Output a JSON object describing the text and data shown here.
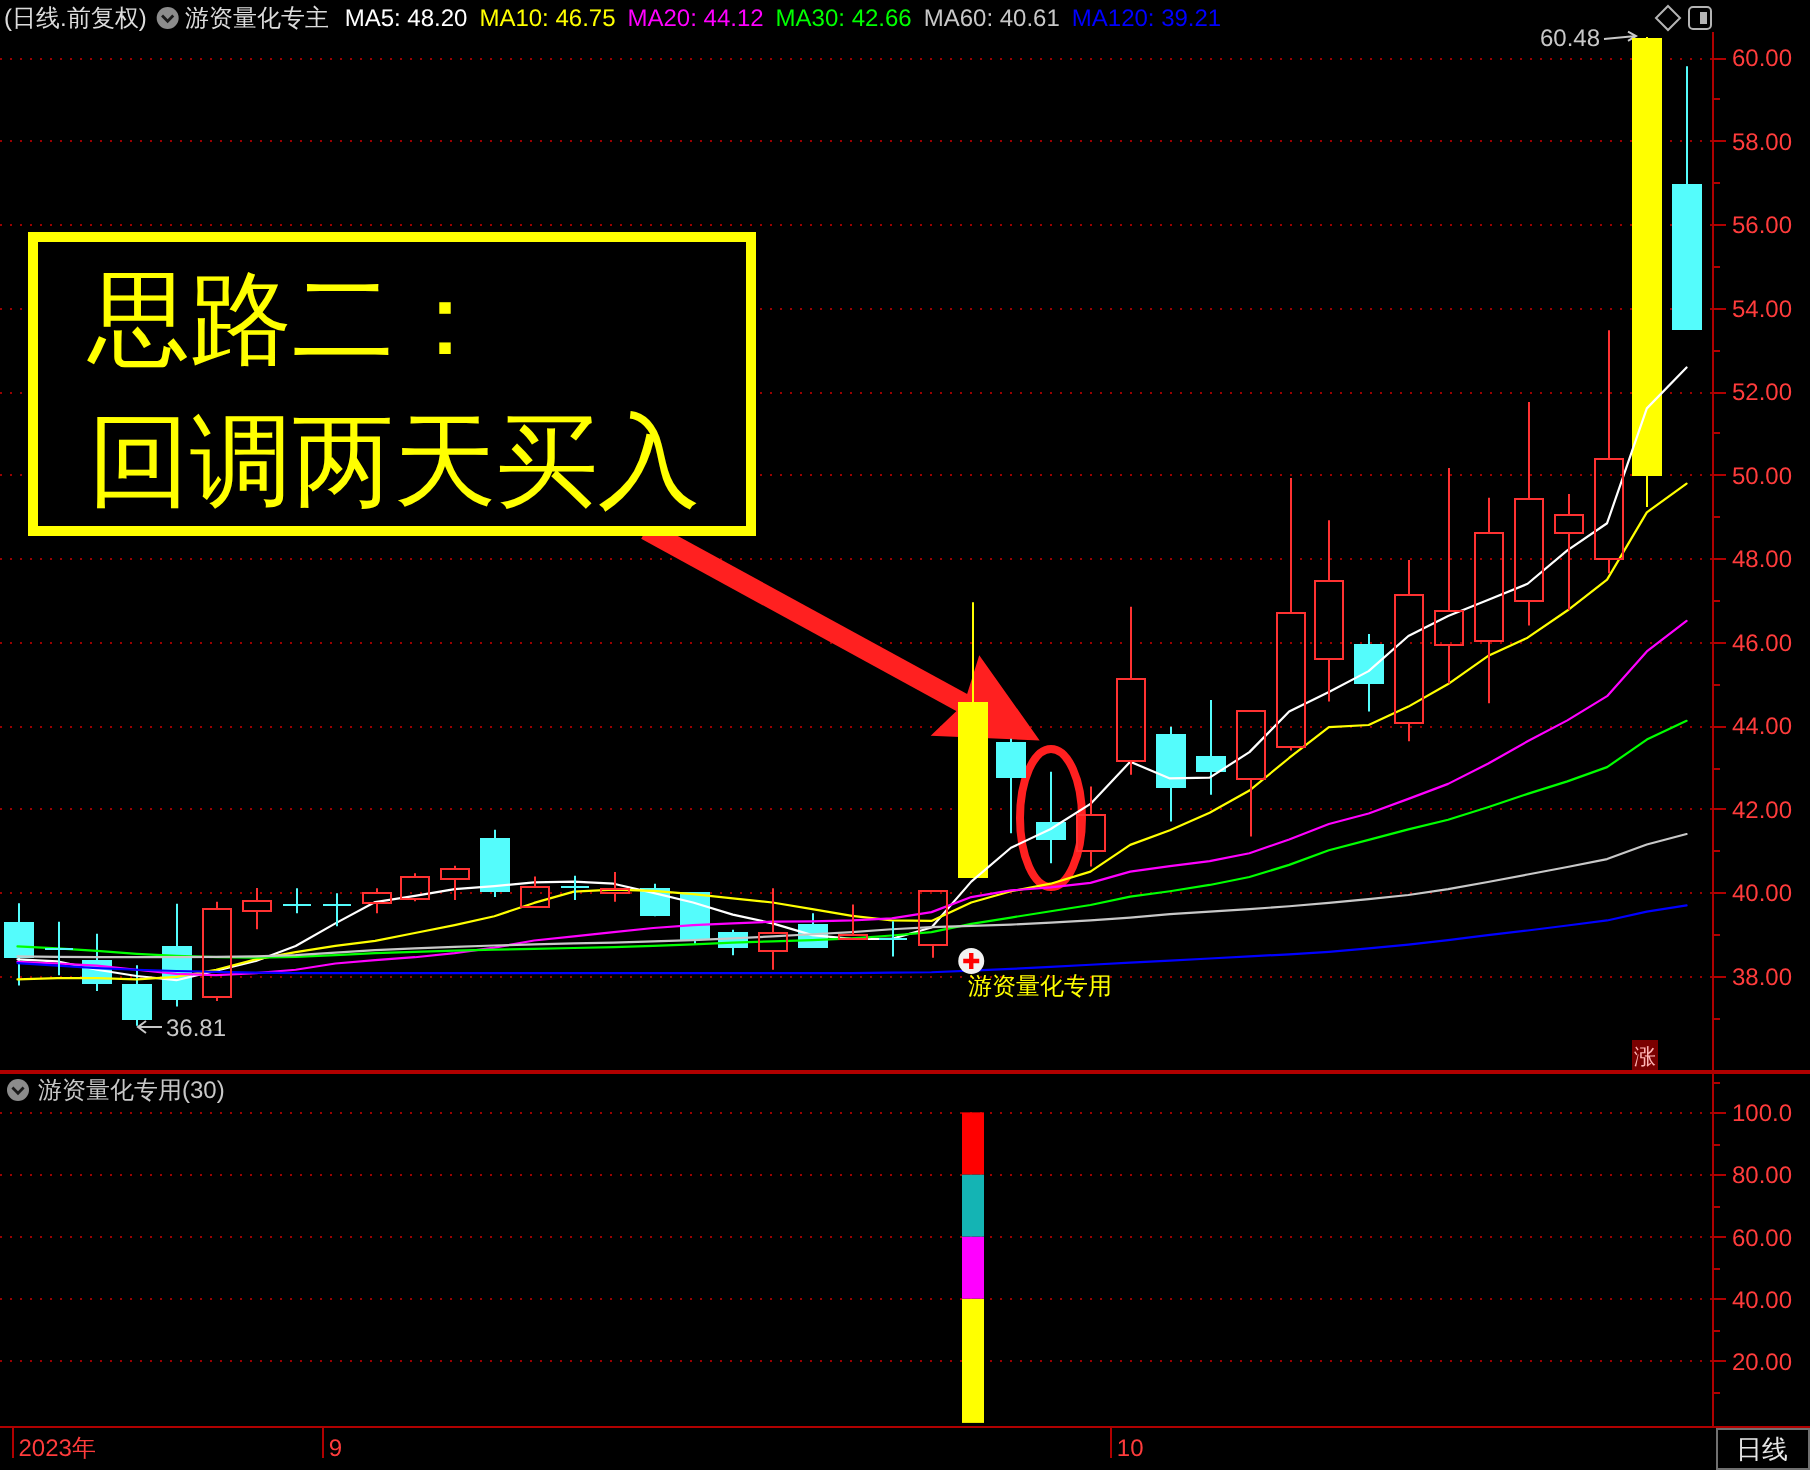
{
  "chart_data": [
    {
      "type": "candlestick",
      "title": "(日线.前复权)",
      "subtitle": "游资量化专主",
      "categories": [
        null,
        null,
        null,
        null,
        null,
        null,
        null,
        null,
        null,
        null,
        null,
        null,
        null,
        null,
        null,
        null,
        null,
        null,
        null,
        null,
        null,
        null,
        null,
        null,
        null,
        null,
        null,
        null,
        null,
        null,
        null,
        null,
        null,
        null,
        null,
        null,
        null,
        null,
        null,
        null,
        null,
        null,
        null
      ],
      "ohlc": [
        [
          39.3,
          39.74,
          37.77,
          38.5
        ],
        [
          38.67,
          39.3,
          38.02,
          38.67
        ],
        [
          38.39,
          39.01,
          37.64,
          37.88
        ],
        [
          37.81,
          38.26,
          36.81,
          37.01
        ],
        [
          38.72,
          39.73,
          37.27,
          37.45
        ],
        [
          37.54,
          39.78,
          37.4,
          39.63
        ],
        [
          39.57,
          40.11,
          39.12,
          39.81
        ],
        [
          39.71,
          40.1,
          39.5,
          39.71
        ],
        [
          39.71,
          39.98,
          39.19,
          39.71
        ],
        [
          39.79,
          40.1,
          39.5,
          40.0
        ],
        [
          39.89,
          40.46,
          39.79,
          40.38
        ],
        [
          40.36,
          40.64,
          39.82,
          40.59
        ],
        [
          41.31,
          41.5,
          39.89,
          40.05
        ],
        [
          39.69,
          40.38,
          39.69,
          40.16
        ],
        [
          40.14,
          40.4,
          39.82,
          40.14
        ],
        [
          40.0,
          40.49,
          39.78,
          40.12
        ],
        [
          40.12,
          40.21,
          39.43,
          39.5
        ],
        [
          40.01,
          40.01,
          38.74,
          38.9
        ],
        [
          39.04,
          39.11,
          38.5,
          38.71
        ],
        [
          38.64,
          40.1,
          38.15,
          39.07
        ],
        [
          39.25,
          39.5,
          38.67,
          38.74
        ],
        [
          38.93,
          39.71,
          38.9,
          39.02
        ],
        [
          38.9,
          39.31,
          38.47,
          38.9
        ],
        [
          38.78,
          40.05,
          38.44,
          40.05
        ],
        [
          40.38,
          46.95,
          40.38,
          44.57
        ],
        [
          43.6,
          43.68,
          41.42,
          42.8
        ],
        [
          41.69,
          42.89,
          40.7,
          41.29
        ],
        [
          41.01,
          42.54,
          40.62,
          41.88
        ],
        [
          43.17,
          46.84,
          42.82,
          45.12
        ],
        [
          43.78,
          43.97,
          41.7,
          42.54
        ],
        [
          43.27,
          44.61,
          42.34,
          42.92
        ],
        [
          42.73,
          44.35,
          41.34,
          44.35
        ],
        [
          43.49,
          49.92,
          43.4,
          46.71
        ],
        [
          45.6,
          48.91,
          44.57,
          47.46
        ],
        [
          45.95,
          46.19,
          44.33,
          45.05
        ],
        [
          44.07,
          47.96,
          43.62,
          47.13
        ],
        [
          45.93,
          50.16,
          45.0,
          46.75
        ],
        [
          46.03,
          49.45,
          44.53,
          48.61
        ],
        [
          46.99,
          51.74,
          46.39,
          49.43
        ],
        [
          48.61,
          49.54,
          46.76,
          49.04
        ],
        [
          48.0,
          53.46,
          47.64,
          50.38
        ],
        [
          50.0,
          60.48,
          49.23,
          60.48
        ],
        [
          56.95,
          59.78,
          53.47,
          53.52
        ]
      ],
      "colors": [
        "#54fcfc",
        "#54fcfc",
        "#54fcfc",
        "#54fcfc",
        "#54fcfc",
        "#ff3232",
        "#ff3232",
        "#54fcfc",
        "#54fcfc",
        "#ff3232",
        "#ff3232",
        "#ff3232",
        "#54fcfc",
        "#ff3232",
        "#54fcfc",
        "#ff3232",
        "#54fcfc",
        "#54fcfc",
        "#54fcfc",
        "#ff3232",
        "#54fcfc",
        "#ff3232",
        "#54fcfc",
        "#ff3232",
        "#ffff00",
        "#54fcfc",
        "#54fcfc",
        "#ff3232",
        "#ff3232",
        "#54fcfc",
        "#54fcfc",
        "#ff3232",
        "#ff3232",
        "#ff3232",
        "#54fcfc",
        "#ff3232",
        "#ff3232",
        "#ff3232",
        "#ff3232",
        "#ff3232",
        "#ff3232",
        "#ffff00",
        "#54fcfc"
      ],
      "series": [
        {
          "name": "MA5: 48.20",
          "type": "line",
          "color": "#ffffff",
          "values": [
            38.4,
            38.35,
            38.15,
            38.0,
            37.9,
            38.13,
            38.36,
            38.72,
            39.26,
            39.77,
            39.92,
            40.08,
            40.15,
            40.24,
            40.26,
            40.21,
            39.99,
            39.76,
            39.47,
            39.26,
            38.98,
            38.89,
            38.89,
            39.16,
            40.26,
            41.07,
            41.52,
            42.12,
            43.13,
            42.73,
            42.75,
            43.36,
            44.33,
            44.8,
            45.3,
            46.14,
            46.62,
            47.0,
            47.39,
            48.19,
            48.84,
            51.59,
            52.57
          ]
        },
        {
          "name": "MA10: 46.75",
          "type": "line",
          "color": "#ffff00",
          "values": [
            37.92,
            37.95,
            37.95,
            37.92,
            37.98,
            38.15,
            38.4,
            38.57,
            38.72,
            38.84,
            39.03,
            39.22,
            39.43,
            39.75,
            40.02,
            40.07,
            40.04,
            39.96,
            39.86,
            39.76,
            39.6,
            39.44,
            39.33,
            39.32,
            39.76,
            40.03,
            40.21,
            40.5,
            41.14,
            41.49,
            41.91,
            42.44,
            43.22,
            43.96,
            44.01,
            44.45,
            44.99,
            45.66,
            46.1,
            46.75,
            47.49,
            49.1,
            49.79
          ]
        },
        {
          "name": "MA20: 44.12",
          "type": "line",
          "color": "#ff00ff",
          "values": [
            38.34,
            38.3,
            38.25,
            38.15,
            38.05,
            38.02,
            38.07,
            38.15,
            38.3,
            38.38,
            38.45,
            38.55,
            38.68,
            38.85,
            38.95,
            39.05,
            39.15,
            39.22,
            39.26,
            39.3,
            39.31,
            39.33,
            39.38,
            39.53,
            39.89,
            40.05,
            40.12,
            40.23,
            40.5,
            40.63,
            40.75,
            40.94,
            41.27,
            41.64,
            41.89,
            42.24,
            42.6,
            43.08,
            43.62,
            44.12,
            44.7,
            45.77,
            46.5
          ]
        },
        {
          "name": "MA30: 42.66",
          "type": "line",
          "color": "#00ff00",
          "values": [
            38.71,
            38.66,
            38.6,
            38.53,
            38.48,
            38.45,
            38.44,
            38.46,
            38.5,
            38.55,
            38.58,
            38.61,
            38.63,
            38.65,
            38.67,
            38.69,
            38.72,
            38.76,
            38.8,
            38.83,
            38.86,
            38.9,
            38.97,
            39.05,
            39.25,
            39.4,
            39.55,
            39.7,
            39.9,
            40.03,
            40.18,
            40.37,
            40.66,
            41.01,
            41.26,
            41.51,
            41.74,
            42.04,
            42.36,
            42.66,
            43.0,
            43.66,
            44.11
          ]
        },
        {
          "name": "MA60: 40.61",
          "type": "line",
          "color": "#c8c8c8",
          "values": [
            38.47,
            38.46,
            38.45,
            38.45,
            38.45,
            38.46,
            38.47,
            38.5,
            38.56,
            38.62,
            38.66,
            38.7,
            38.73,
            38.76,
            38.78,
            38.8,
            38.83,
            38.86,
            38.9,
            38.95,
            39.0,
            39.05,
            39.12,
            39.17,
            39.2,
            39.23,
            39.28,
            39.33,
            39.4,
            39.48,
            39.54,
            39.6,
            39.67,
            39.75,
            39.84,
            39.94,
            40.08,
            40.25,
            40.43,
            40.61,
            40.8,
            41.15,
            41.4
          ]
        },
        {
          "name": "MA120: 39.21",
          "type": "line",
          "color": "#0000ff",
          "values": [
            38.31,
            38.25,
            38.19,
            38.15,
            38.12,
            38.1,
            38.08,
            38.07,
            38.07,
            38.07,
            38.07,
            38.07,
            38.07,
            38.07,
            38.07,
            38.07,
            38.07,
            38.07,
            38.07,
            38.07,
            38.07,
            38.07,
            38.08,
            38.09,
            38.13,
            38.17,
            38.22,
            38.27,
            38.32,
            38.37,
            38.42,
            38.47,
            38.52,
            38.58,
            38.66,
            38.75,
            38.86,
            38.98,
            39.09,
            39.21,
            39.33,
            39.54,
            39.69
          ]
        },
        {
          "type": "scatter",
          "color": "#ff0000",
          "marker": "cross",
          "values": [
            null,
            null,
            null,
            null,
            null,
            null,
            null,
            null,
            null,
            null,
            null,
            null,
            null,
            null,
            null,
            null,
            null,
            null,
            null,
            null,
            null,
            null,
            null,
            null,
            38.36,
            null,
            null,
            null,
            null,
            null,
            null,
            null,
            null,
            null,
            null,
            null,
            null,
            null,
            null,
            null,
            null,
            null,
            null
          ]
        }
      ],
      "ylim": [
        35.75,
        60.6
      ],
      "yticks": [
        {
          "value": 38,
          "label": "38.00"
        },
        {
          "value": 40,
          "label": "40.00"
        },
        {
          "value": 42,
          "label": "42.00"
        },
        {
          "value": 44,
          "label": "44.00"
        },
        {
          "value": 46,
          "label": "46.00"
        },
        {
          "value": 48,
          "label": "48.00"
        },
        {
          "value": 50,
          "label": "50.00"
        },
        {
          "value": 52,
          "label": "52.00"
        },
        {
          "value": 54,
          "label": "54.00"
        },
        {
          "value": 56,
          "label": "56.00"
        },
        {
          "value": 58,
          "label": "58.00"
        },
        {
          "value": 60,
          "label": "60.00"
        }
      ],
      "grid": "y",
      "legend": "top",
      "tick_labels": "y",
      "annotations": [
        "60.48",
        "36.81",
        "思路二：",
        "回调两天买入",
        "游资量化专用",
        "涨"
      ]
    },
    {
      "type": "bar",
      "title": "游资量化专用(30)",
      "categories": [
        null,
        "2023年",
        null,
        null,
        null,
        null,
        null,
        null,
        "9",
        null,
        null,
        null,
        null,
        null,
        null,
        null,
        null,
        null,
        null,
        null,
        null,
        null,
        null,
        null,
        null,
        null,
        null,
        null,
        "10",
        null,
        null,
        null,
        null,
        null,
        null,
        null,
        null,
        null,
        null,
        null,
        null,
        null,
        null
      ],
      "stacked": true,
      "series": [
        {
          "color": "#ffff00",
          "values": [
            null,
            null,
            null,
            null,
            null,
            null,
            null,
            null,
            null,
            null,
            null,
            null,
            null,
            null,
            null,
            null,
            null,
            null,
            null,
            null,
            null,
            null,
            null,
            null,
            40,
            null,
            null,
            null,
            null,
            null,
            null,
            null,
            null,
            null,
            null,
            null,
            null,
            null,
            null,
            null,
            null,
            null,
            null
          ]
        },
        {
          "color": "#ff00ff",
          "values": [
            null,
            null,
            null,
            null,
            null,
            null,
            null,
            null,
            null,
            null,
            null,
            null,
            null,
            null,
            null,
            null,
            null,
            null,
            null,
            null,
            null,
            null,
            null,
            null,
            20,
            null,
            null,
            null,
            null,
            null,
            null,
            null,
            null,
            null,
            null,
            null,
            null,
            null,
            null,
            null,
            null,
            null,
            null
          ]
        },
        {
          "color": "#14b4b4",
          "values": [
            null,
            null,
            null,
            null,
            null,
            null,
            null,
            null,
            null,
            null,
            null,
            null,
            null,
            null,
            null,
            null,
            null,
            null,
            null,
            null,
            null,
            null,
            null,
            null,
            20,
            null,
            null,
            null,
            null,
            null,
            null,
            null,
            null,
            null,
            null,
            null,
            null,
            null,
            null,
            null,
            null,
            null,
            null
          ]
        },
        {
          "color": "#ff0000",
          "values": [
            null,
            null,
            null,
            null,
            null,
            null,
            null,
            null,
            null,
            null,
            null,
            null,
            null,
            null,
            null,
            null,
            null,
            null,
            null,
            null,
            null,
            null,
            null,
            null,
            20,
            null,
            null,
            null,
            null,
            null,
            null,
            null,
            null,
            null,
            null,
            null,
            null,
            null,
            null,
            null,
            null,
            null,
            null
          ]
        }
      ],
      "ylim": [
        -1,
        113
      ],
      "yticks": [
        {
          "value": 20,
          "label": "20.00"
        },
        {
          "value": 40,
          "label": "40.00"
        },
        {
          "value": 60,
          "label": "60.00"
        },
        {
          "value": 80,
          "label": "80.00"
        },
        {
          "value": 100,
          "label": "100.0"
        }
      ],
      "grid": "y",
      "annotations": [
        "日线"
      ]
    }
  ]
}
